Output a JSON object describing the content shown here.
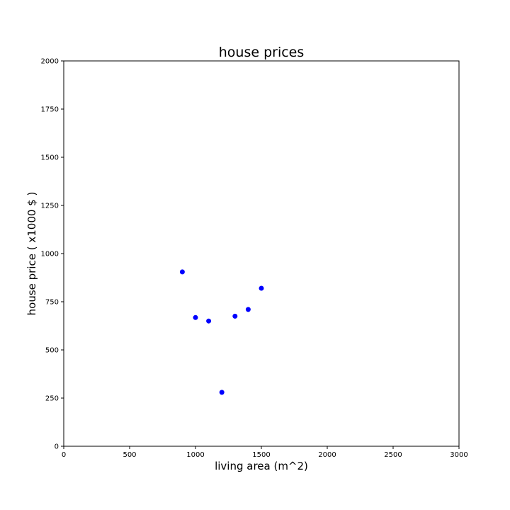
{
  "chart_data": {
    "type": "scatter",
    "title": "house prices",
    "xlabel": "living area (m^2)",
    "ylabel": "house price ( x1000 $ )",
    "xlim": [
      0,
      3000
    ],
    "ylim": [
      0,
      2000
    ],
    "xticks": [
      0,
      500,
      1000,
      1500,
      2000,
      2500,
      3000
    ],
    "yticks": [
      0,
      250,
      500,
      750,
      1000,
      1250,
      1500,
      1750,
      2000
    ],
    "grid": false,
    "series": [
      {
        "color": "#0000ff",
        "points": [
          {
            "x": 900,
            "y": 905
          },
          {
            "x": 1000,
            "y": 668
          },
          {
            "x": 1100,
            "y": 650
          },
          {
            "x": 1200,
            "y": 280
          },
          {
            "x": 1300,
            "y": 675
          },
          {
            "x": 1400,
            "y": 710
          },
          {
            "x": 1500,
            "y": 820
          }
        ]
      }
    ]
  }
}
